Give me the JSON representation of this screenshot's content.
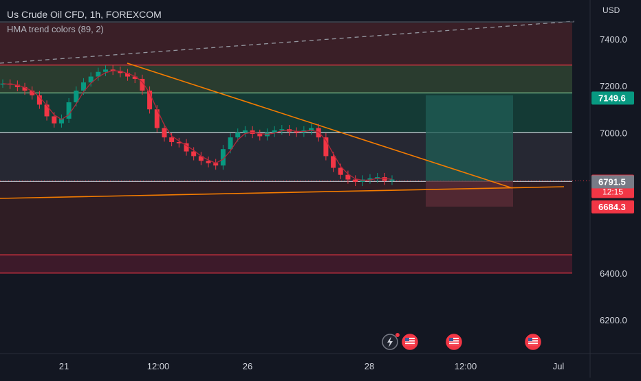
{
  "header": {
    "symbol_title": "Us Crude Oil CFD, 1h, FOREXCOM",
    "indicator_title": "HMA trend colors (89, 2)"
  },
  "price_axis": {
    "currency": "USD",
    "ticks": [
      "7400.0",
      "7200.0",
      "7000.0",
      "6400.0",
      "6200.0"
    ],
    "tick_values": [
      7400,
      7200,
      7000,
      6400,
      6200
    ]
  },
  "time_axis": {
    "ticks": [
      "21",
      "12:00",
      "26",
      "28",
      "12:00",
      "Jul"
    ]
  },
  "price_labels": [
    {
      "text": "7149.6",
      "value": 7149.6,
      "color": "#089981",
      "text_color": "#ffffff"
    },
    {
      "text": "6794.3",
      "subtext": "12:15",
      "value": 6794.3,
      "color": "#f23645",
      "text_color": "#ffffff"
    },
    {
      "text": "6791.5",
      "value": 6791.5,
      "color": "#787b86",
      "text_color": "#ffffff"
    },
    {
      "text": "6684.3",
      "value": 6684.3,
      "color": "#f23645",
      "text_color": "#ffffff"
    }
  ],
  "chart_data": {
    "type": "line",
    "series": [
      {
        "values": [
          7210,
          7205,
          7195,
          7180,
          7160,
          7120,
          7070,
          7040,
          7060,
          7130,
          7180,
          7215,
          7240,
          7260,
          7270,
          7265,
          7255,
          7240,
          7230,
          7180,
          7100,
          7020,
          6980,
          6960,
          6955,
          6920,
          6900,
          6880,
          6870,
          6860,
          6930,
          6980,
          7000,
          7010,
          6995,
          6985,
          7000,
          7010,
          7015,
          7005,
          7000,
          7010,
          7020,
          6980,
          6900,
          6850,
          6820,
          6800,
          6790,
          6800,
          6805,
          6810,
          6795,
          6800
        ]
      }
    ],
    "ylim": [
      6100,
      7500
    ],
    "horizontal_levels": [
      {
        "value": 7289,
        "color": "#f23645"
      },
      {
        "value": 7170,
        "color": "#81c995"
      },
      {
        "value": 7000,
        "color": "#e0e3eb"
      },
      {
        "value": 6791.5,
        "color": "#b2b5be"
      },
      {
        "value": 6478,
        "color": "#f23645"
      },
      {
        "value": 6400,
        "color": "#f23645"
      }
    ],
    "zones": [
      {
        "from": 7289,
        "to": 7470,
        "color": "#3a1f27"
      },
      {
        "from": 7170,
        "to": 7289,
        "color": "#2a3c2f"
      },
      {
        "from": 7000,
        "to": 7170,
        "color": "#143a35"
      },
      {
        "from": 6791.5,
        "to": 7000,
        "color": "#262833"
      },
      {
        "from": 6478,
        "to": 6791.5,
        "color": "#2f1d24"
      },
      {
        "from": 6400,
        "to": 6478,
        "color": "#3d1a2a"
      }
    ],
    "current_price": 6794.3,
    "grid": false,
    "legend": "top-left"
  },
  "event_icons": [
    "flash-icon",
    "us-flag-icon",
    "us-flag-icon",
    "us-flag-icon",
    "us-flag-icon"
  ]
}
